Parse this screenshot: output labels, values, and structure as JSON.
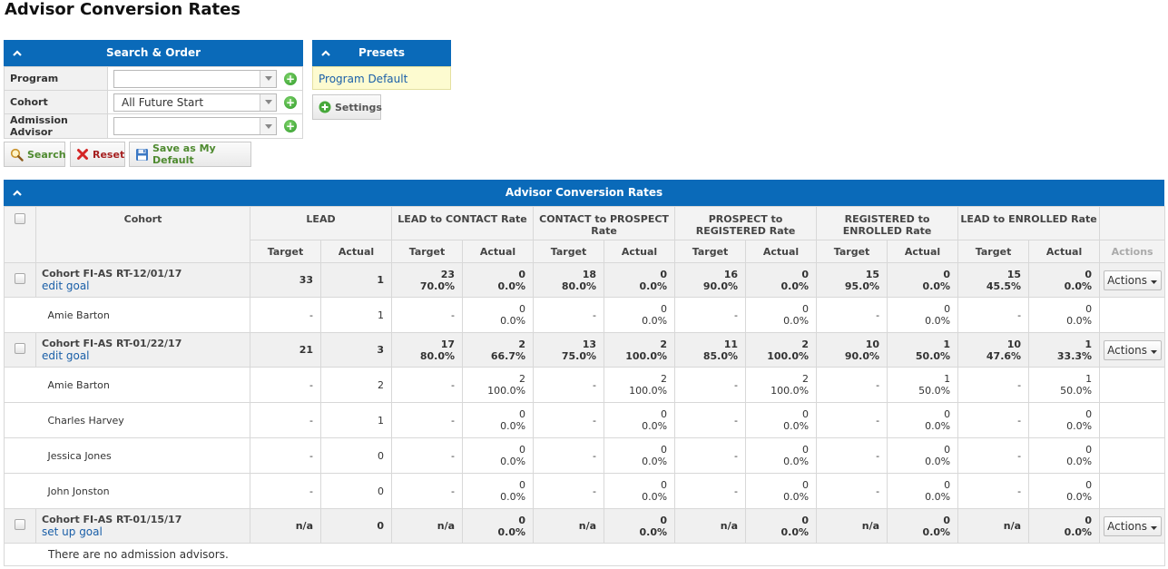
{
  "page": {
    "title": "Advisor Conversion Rates"
  },
  "search_panel": {
    "title": "Search & Order",
    "fields": [
      {
        "label": "Program",
        "value": ""
      },
      {
        "label": "Cohort",
        "value": "All Future Start"
      },
      {
        "label": "Admission Advisor",
        "value": ""
      }
    ]
  },
  "presets_panel": {
    "title": "Presets",
    "link": "Program Default",
    "settings_label": "Settings"
  },
  "toolbar": {
    "search_label": "Search",
    "reset_label": "Reset",
    "save_default_label": "Save as My Default"
  },
  "table": {
    "title": "Advisor Conversion Rates",
    "cohort_header": "Cohort",
    "groups": [
      "LEAD",
      "LEAD to CONTACT Rate",
      "CONTACT to PROSPECT Rate",
      "PROSPECT to REGISTERED Rate",
      "REGISTERED to ENROLLED Rate",
      "LEAD to ENROLLED Rate"
    ],
    "target_label": "Target",
    "actual_label": "Actual",
    "actions_header": "Actions",
    "actions_button": "Actions",
    "cohorts": [
      {
        "name": "Cohort FI-AS RT-12/01/17",
        "link": "edit goal",
        "row": [
          [
            "33"
          ],
          [
            "1"
          ],
          [
            "23",
            "70.0%"
          ],
          [
            "0",
            "0.0%"
          ],
          [
            "18",
            "80.0%"
          ],
          [
            "0",
            "0.0%"
          ],
          [
            "16",
            "90.0%"
          ],
          [
            "0",
            "0.0%"
          ],
          [
            "15",
            "95.0%"
          ],
          [
            "0",
            "0.0%"
          ],
          [
            "15",
            "45.5%"
          ],
          [
            "0",
            "0.0%"
          ]
        ],
        "advisors": [
          {
            "name": "Amie Barton",
            "row": [
              [
                "-"
              ],
              [
                "1"
              ],
              [
                "-"
              ],
              [
                "0",
                "0.0%"
              ],
              [
                "-"
              ],
              [
                "0",
                "0.0%"
              ],
              [
                "-"
              ],
              [
                "0",
                "0.0%"
              ],
              [
                "-"
              ],
              [
                "0",
                "0.0%"
              ],
              [
                "-"
              ],
              [
                "0",
                "0.0%"
              ]
            ]
          }
        ]
      },
      {
        "name": "Cohort FI-AS RT-01/22/17",
        "link": "edit goal",
        "row": [
          [
            "21"
          ],
          [
            "3"
          ],
          [
            "17",
            "80.0%"
          ],
          [
            "2",
            "66.7%"
          ],
          [
            "13",
            "75.0%"
          ],
          [
            "2",
            "100.0%"
          ],
          [
            "11",
            "85.0%"
          ],
          [
            "2",
            "100.0%"
          ],
          [
            "10",
            "90.0%"
          ],
          [
            "1",
            "50.0%"
          ],
          [
            "10",
            "47.6%"
          ],
          [
            "1",
            "33.3%"
          ]
        ],
        "advisors": [
          {
            "name": "Amie Barton",
            "row": [
              [
                "-"
              ],
              [
                "2"
              ],
              [
                "-"
              ],
              [
                "2",
                "100.0%"
              ],
              [
                "-"
              ],
              [
                "2",
                "100.0%"
              ],
              [
                "-"
              ],
              [
                "2",
                "100.0%"
              ],
              [
                "-"
              ],
              [
                "1",
                "50.0%"
              ],
              [
                "-"
              ],
              [
                "1",
                "50.0%"
              ]
            ]
          },
          {
            "name": "Charles Harvey",
            "row": [
              [
                "-"
              ],
              [
                "1"
              ],
              [
                "-"
              ],
              [
                "0",
                "0.0%"
              ],
              [
                "-"
              ],
              [
                "0",
                "0.0%"
              ],
              [
                "-"
              ],
              [
                "0",
                "0.0%"
              ],
              [
                "-"
              ],
              [
                "0",
                "0.0%"
              ],
              [
                "-"
              ],
              [
                "0",
                "0.0%"
              ]
            ]
          },
          {
            "name": "Jessica Jones",
            "row": [
              [
                "-"
              ],
              [
                "0"
              ],
              [
                "-"
              ],
              [
                "0",
                "0.0%"
              ],
              [
                "-"
              ],
              [
                "0",
                "0.0%"
              ],
              [
                "-"
              ],
              [
                "0",
                "0.0%"
              ],
              [
                "-"
              ],
              [
                "0",
                "0.0%"
              ],
              [
                "-"
              ],
              [
                "0",
                "0.0%"
              ]
            ]
          },
          {
            "name": "John Jonston",
            "row": [
              [
                "-"
              ],
              [
                "0"
              ],
              [
                "-"
              ],
              [
                "0",
                "0.0%"
              ],
              [
                "-"
              ],
              [
                "0",
                "0.0%"
              ],
              [
                "-"
              ],
              [
                "0",
                "0.0%"
              ],
              [
                "-"
              ],
              [
                "0",
                "0.0%"
              ],
              [
                "-"
              ],
              [
                "0",
                "0.0%"
              ]
            ]
          }
        ]
      },
      {
        "name": "Cohort FI-AS RT-01/15/17",
        "link": "set up goal",
        "row": [
          [
            "n/a"
          ],
          [
            "0"
          ],
          [
            "n/a"
          ],
          [
            "0",
            "0.0%"
          ],
          [
            "n/a"
          ],
          [
            "0",
            "0.0%"
          ],
          [
            "n/a"
          ],
          [
            "0",
            "0.0%"
          ],
          [
            "n/a"
          ],
          [
            "0",
            "0.0%"
          ],
          [
            "n/a"
          ],
          [
            "0",
            "0.0%"
          ]
        ],
        "advisors": [],
        "empty_message": "There are no admission advisors."
      }
    ]
  }
}
